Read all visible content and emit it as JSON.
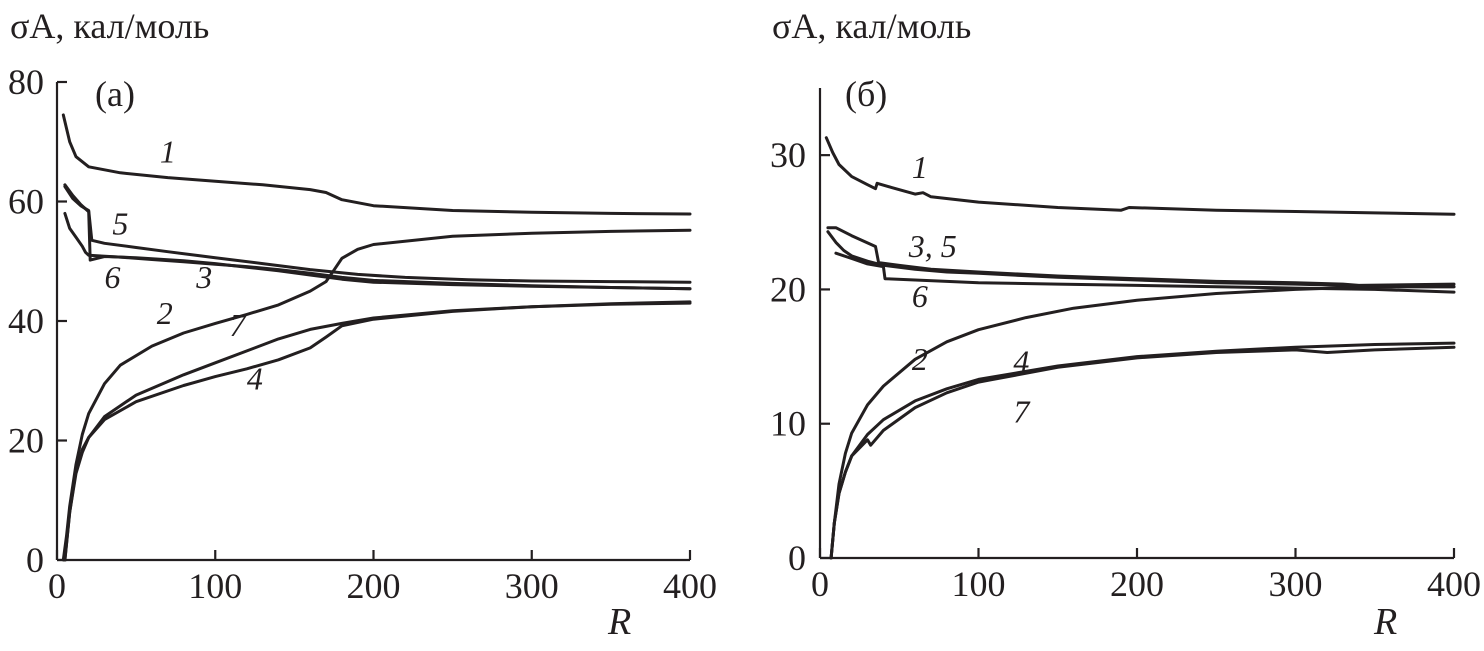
{
  "colors": {
    "ink": "#231f20",
    "background": "#ffffff"
  },
  "chart_data": [
    {
      "type": "line",
      "panel_label": "(а)",
      "ylabel": "σA, кал/моль",
      "xlabel": "R",
      "xlim": [
        0,
        400
      ],
      "ylim": [
        0,
        80
      ],
      "xticks": [
        0,
        100,
        200,
        300,
        400
      ],
      "yticks": [
        0,
        20,
        40,
        60,
        80
      ],
      "xtick_labels": [
        "0",
        "100",
        "200",
        "300",
        "400"
      ],
      "ytick_labels": [
        "0",
        "20",
        "40",
        "60",
        "80"
      ],
      "grid": false,
      "series": [
        {
          "name": "1",
          "points": [
            [
              4,
              74.5
            ],
            [
              8,
              70
            ],
            [
              12,
              67.5
            ],
            [
              20,
              65.8
            ],
            [
              40,
              64.8
            ],
            [
              70,
              64
            ],
            [
              100,
              63.4
            ],
            [
              130,
              62.8
            ],
            [
              160,
              62
            ],
            [
              170,
              61.5
            ],
            [
              180,
              60.3
            ],
            [
              200,
              59.3
            ],
            [
              250,
              58.5
            ],
            [
              300,
              58.2
            ],
            [
              350,
              58
            ],
            [
              400,
              57.9
            ]
          ]
        },
        {
          "name": "2",
          "points": [
            [
              4,
              0
            ],
            [
              6,
              4
            ],
            [
              8,
              9
            ],
            [
              12,
              16
            ],
            [
              16,
              21
            ],
            [
              20,
              24.5
            ],
            [
              30,
              29.5
            ],
            [
              40,
              32.6
            ],
            [
              60,
              35.8
            ],
            [
              80,
              38
            ],
            [
              100,
              39.6
            ],
            [
              120,
              41.1
            ],
            [
              140,
              42.7
            ],
            [
              160,
              45
            ],
            [
              170,
              46.6
            ],
            [
              175,
              48.5
            ],
            [
              180,
              50.5
            ],
            [
              190,
              52
            ],
            [
              200,
              52.8
            ],
            [
              250,
              54.2
            ],
            [
              300,
              54.7
            ],
            [
              350,
              55
            ],
            [
              400,
              55.2
            ]
          ]
        },
        {
          "name": "3",
          "points": [
            [
              5,
              58
            ],
            [
              8,
              55.5
            ],
            [
              12,
              54
            ],
            [
              16,
              52.5
            ],
            [
              18,
              51.5
            ],
            [
              20,
              51
            ],
            [
              40,
              50.7
            ],
            [
              60,
              50.3
            ],
            [
              80,
              49.9
            ],
            [
              100,
              49.5
            ],
            [
              120,
              49.1
            ],
            [
              140,
              48.6
            ],
            [
              160,
              48
            ],
            [
              180,
              47.3
            ],
            [
              200,
              46.8
            ],
            [
              250,
              46.3
            ],
            [
              300,
              45.9
            ],
            [
              350,
              45.6
            ],
            [
              400,
              45.4
            ]
          ]
        },
        {
          "name": "4",
          "points": [
            [
              5,
              0
            ],
            [
              8,
              8
            ],
            [
              12,
              15
            ],
            [
              16,
              18.5
            ],
            [
              20,
              20.5
            ],
            [
              30,
              23.5
            ],
            [
              50,
              26.5
            ],
            [
              80,
              29.2
            ],
            [
              100,
              30.7
            ],
            [
              120,
              32
            ],
            [
              140,
              33.5
            ],
            [
              160,
              35.5
            ],
            [
              170,
              37.3
            ],
            [
              180,
              39.2
            ],
            [
              200,
              40.3
            ],
            [
              250,
              41.6
            ],
            [
              300,
              42.4
            ],
            [
              350,
              42.8
            ],
            [
              400,
              43
            ]
          ]
        },
        {
          "name": "5",
          "points": [
            [
              5,
              62.5
            ],
            [
              10,
              60.5
            ],
            [
              15,
              59.3
            ],
            [
              18,
              58.8
            ],
            [
              20,
              58.5
            ],
            [
              22,
              53.5
            ],
            [
              30,
              53
            ],
            [
              50,
              52.3
            ],
            [
              70,
              51.6
            ],
            [
              100,
              50.6
            ],
            [
              130,
              49.6
            ],
            [
              160,
              48.6
            ],
            [
              190,
              47.8
            ],
            [
              220,
              47.3
            ],
            [
              260,
              46.9
            ],
            [
              300,
              46.7
            ],
            [
              350,
              46.6
            ],
            [
              400,
              46.5
            ]
          ]
        },
        {
          "name": "6",
          "points": [
            [
              5,
              62.8
            ],
            [
              10,
              61
            ],
            [
              15,
              59.5
            ],
            [
              20,
              58.3
            ],
            [
              21,
              50.2
            ],
            [
              30,
              50.8
            ],
            [
              50,
              50.6
            ],
            [
              80,
              50.1
            ],
            [
              100,
              49.6
            ],
            [
              120,
              49
            ],
            [
              140,
              48.4
            ],
            [
              160,
              47.7
            ],
            [
              180,
              47
            ],
            [
              200,
              46.5
            ],
            [
              250,
              46.1
            ],
            [
              300,
              45.8
            ],
            [
              350,
              45.6
            ],
            [
              400,
              45.4
            ]
          ]
        },
        {
          "name": "7",
          "points": [
            [
              5,
              0
            ],
            [
              8,
              8
            ],
            [
              12,
              14.5
            ],
            [
              16,
              18
            ],
            [
              20,
              20.5
            ],
            [
              30,
              24
            ],
            [
              50,
              27.6
            ],
            [
              80,
              31
            ],
            [
              100,
              33
            ],
            [
              120,
              35
            ],
            [
              140,
              37
            ],
            [
              160,
              38.6
            ],
            [
              180,
              39.6
            ],
            [
              200,
              40.5
            ],
            [
              250,
              41.7
            ],
            [
              300,
              42.4
            ],
            [
              350,
              42.9
            ],
            [
              400,
              43.2
            ]
          ]
        }
      ],
      "labels": [
        {
          "text": "1",
          "x": 65,
          "y": 66.5
        },
        {
          "text": "2",
          "x": 63,
          "y": 39.5
        },
        {
          "text": "3",
          "x": 88,
          "y": 45.5
        },
        {
          "text": "4",
          "x": 120,
          "y": 28.5
        },
        {
          "text": "5",
          "x": 35,
          "y": 54.5
        },
        {
          "text": "6",
          "x": 30,
          "y": 45.5
        },
        {
          "text": "7",
          "x": 109,
          "y": 37.5
        }
      ]
    },
    {
      "type": "line",
      "panel_label": "(б)",
      "ylabel": "σA, кал/моль",
      "xlabel": "R",
      "xlim": [
        0,
        400
      ],
      "ylim": [
        0,
        35
      ],
      "xticks": [
        0,
        100,
        200,
        300,
        400
      ],
      "yticks": [
        0,
        10,
        20,
        30
      ],
      "xtick_labels": [
        "0",
        "100",
        "200",
        "300",
        "400"
      ],
      "ytick_labels": [
        "0",
        "10",
        "20",
        "30"
      ],
      "grid": false,
      "series": [
        {
          "name": "1",
          "points": [
            [
              4,
              31.3
            ],
            [
              8,
              30.2
            ],
            [
              12,
              29.3
            ],
            [
              20,
              28.4
            ],
            [
              30,
              27.8
            ],
            [
              35,
              27.5
            ],
            [
              36,
              27.9
            ],
            [
              45,
              27.6
            ],
            [
              60,
              27.1
            ],
            [
              65,
              27.2
            ],
            [
              70,
              26.9
            ],
            [
              100,
              26.5
            ],
            [
              150,
              26.1
            ],
            [
              190,
              25.9
            ],
            [
              195,
              26.1
            ],
            [
              250,
              25.9
            ],
            [
              300,
              25.8
            ],
            [
              350,
              25.7
            ],
            [
              400,
              25.6
            ]
          ]
        },
        {
          "name": "2",
          "points": [
            [
              7,
              0
            ],
            [
              9,
              2.6
            ],
            [
              12,
              5.5
            ],
            [
              16,
              7.8
            ],
            [
              20,
              9.3
            ],
            [
              30,
              11.4
            ],
            [
              40,
              12.8
            ],
            [
              60,
              14.8
            ],
            [
              80,
              16.1
            ],
            [
              100,
              17
            ],
            [
              130,
              17.9
            ],
            [
              160,
              18.6
            ],
            [
              200,
              19.2
            ],
            [
              250,
              19.7
            ],
            [
              300,
              20
            ],
            [
              350,
              20.2
            ],
            [
              400,
              20.2
            ]
          ]
        },
        {
          "name": "3",
          "points": [
            [
              5,
              24.3
            ],
            [
              10,
              23.5
            ],
            [
              15,
              22.9
            ],
            [
              20,
              22.5
            ],
            [
              30,
              22.1
            ],
            [
              40,
              21.8
            ],
            [
              60,
              21.5
            ],
            [
              80,
              21.3
            ],
            [
              100,
              21.2
            ],
            [
              150,
              20.9
            ],
            [
              200,
              20.7
            ],
            [
              250,
              20.5
            ],
            [
              300,
              20.4
            ],
            [
              330,
              20.3
            ],
            [
              340,
              20.2
            ],
            [
              400,
              20.2
            ]
          ]
        },
        {
          "name": "4",
          "points": [
            [
              7,
              0
            ],
            [
              9,
              2.6
            ],
            [
              12,
              4.8
            ],
            [
              16,
              6.4
            ],
            [
              20,
              7.6
            ],
            [
              30,
              9.2
            ],
            [
              40,
              10.3
            ],
            [
              60,
              11.7
            ],
            [
              80,
              12.6
            ],
            [
              100,
              13.3
            ],
            [
              150,
              14.3
            ],
            [
              200,
              15
            ],
            [
              250,
              15.4
            ],
            [
              300,
              15.7
            ],
            [
              350,
              15.9
            ],
            [
              400,
              16
            ]
          ]
        },
        {
          "name": "5",
          "points": [
            [
              5,
              24.6
            ],
            [
              10,
              24.6
            ],
            [
              20,
              24
            ],
            [
              35,
              23.2
            ],
            [
              37,
              22
            ],
            [
              50,
              21.8
            ],
            [
              70,
              21.5
            ],
            [
              100,
              21.3
            ],
            [
              150,
              21
            ],
            [
              200,
              20.8
            ],
            [
              250,
              20.6
            ],
            [
              300,
              20.5
            ],
            [
              330,
              20.4
            ],
            [
              340,
              20.3
            ],
            [
              400,
              20.4
            ]
          ]
        },
        {
          "name": "6",
          "points": [
            [
              10,
              22.7
            ],
            [
              20,
              22.3
            ],
            [
              30,
              21.9
            ],
            [
              40,
              21.7
            ],
            [
              41,
              20.8
            ],
            [
              60,
              20.7
            ],
            [
              100,
              20.5
            ],
            [
              150,
              20.4
            ],
            [
              200,
              20.3
            ],
            [
              250,
              20.2
            ],
            [
              300,
              20.1
            ],
            [
              350,
              20
            ],
            [
              400,
              19.8
            ]
          ]
        },
        {
          "name": "7",
          "points": [
            [
              7,
              0
            ],
            [
              9,
              2.6
            ],
            [
              12,
              4.8
            ],
            [
              16,
              6.4
            ],
            [
              20,
              7.6
            ],
            [
              30,
              8.8
            ],
            [
              32,
              8.4
            ],
            [
              40,
              9.5
            ],
            [
              60,
              11.2
            ],
            [
              80,
              12.3
            ],
            [
              100,
              13.1
            ],
            [
              150,
              14.2
            ],
            [
              200,
              14.9
            ],
            [
              250,
              15.3
            ],
            [
              300,
              15.5
            ],
            [
              320,
              15.3
            ],
            [
              350,
              15.5
            ],
            [
              400,
              15.7
            ]
          ]
        }
      ],
      "labels": [
        {
          "text": "1",
          "x": 58,
          "y": 28.3
        },
        {
          "text": "2",
          "x": 58,
          "y": 14
        },
        {
          "text": "3, 5",
          "x": 56,
          "y": 22.4
        },
        {
          "text": "4",
          "x": 122,
          "y": 13.8
        },
        {
          "text": "6",
          "x": 58,
          "y": 18.7
        },
        {
          "text": "7",
          "x": 122,
          "y": 10.1
        }
      ]
    }
  ]
}
